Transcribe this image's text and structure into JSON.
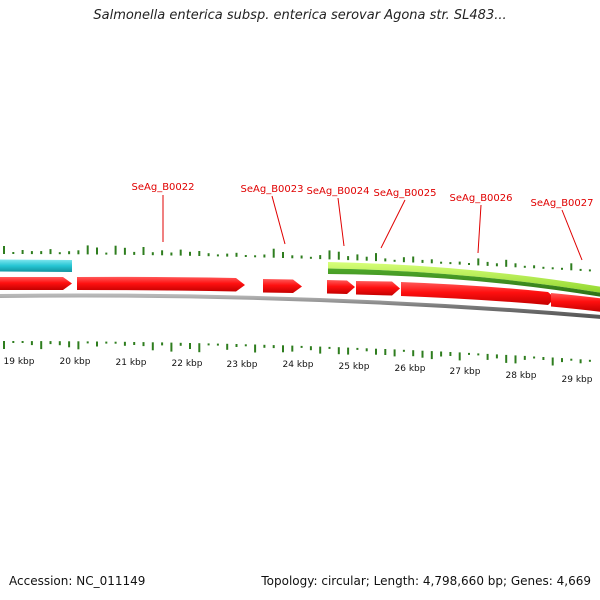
{
  "title": "Salmonella enterica subsp. enterica serovar Agona str. SL483...",
  "footer": {
    "accession": "Accession: NC_011149",
    "summary": "Topology: circular; Length: 4,798,660 bp; Genes: 4,669"
  },
  "colors": {
    "background": "#ffffff",
    "cds_forward": "#ff1a1a",
    "rna_feature": "#2ec9d6",
    "green_outer": "#a8e83a",
    "green_inner": "#3a8a1e",
    "gc_ticks": "#2e7d1e",
    "backbone": "#8a8a8a",
    "label_text": "#e00000"
  },
  "gene_labels": [
    {
      "text": "SeAg_B0022"
    },
    {
      "text": "SeAg_B0023"
    },
    {
      "text": "SeAg_B0024"
    },
    {
      "text": "SeAg_B0025"
    },
    {
      "text": "SeAg_B0026"
    },
    {
      "text": "SeAg_B0027"
    }
  ],
  "kbp_ticks": [
    "19 kbp",
    "20 kbp",
    "21 kbp",
    "22 kbp",
    "23 kbp",
    "24 kbp",
    "25 kbp",
    "26 kbp",
    "27 kbp",
    "28 kbp",
    "29 kbp"
  ]
}
